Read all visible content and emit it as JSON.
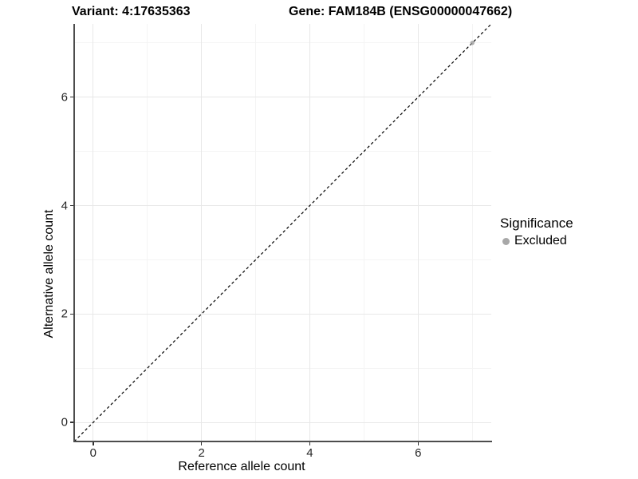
{
  "header": {
    "variant_title": "Variant: 4:17635363",
    "gene_title": "Gene: FAM184B (ENSG00000047662)"
  },
  "chart_data": {
    "type": "scatter",
    "titles": [
      "Variant: 4:17635363",
      "Gene: FAM184B (ENSG00000047662)"
    ],
    "xlabel": "Reference allele count",
    "ylabel": "Alternative allele count",
    "xlim": [
      -0.35,
      7.35
    ],
    "ylim": [
      -0.35,
      7.35
    ],
    "x_major_ticks": [
      0,
      2,
      4,
      6
    ],
    "y_major_ticks": [
      0,
      2,
      4,
      6
    ],
    "x_minor_breaks": [
      1,
      3,
      5,
      7
    ],
    "y_minor_breaks": [
      1,
      3,
      5,
      7
    ],
    "grid": "major+minor",
    "identity_line": {
      "equation": "y = x",
      "style": "dashed",
      "color": "#000000"
    },
    "series": [
      {
        "name": "Excluded",
        "color": "#9c9c9c",
        "points": [
          [
            7,
            7
          ]
        ]
      }
    ],
    "legend": {
      "title": "Significance",
      "position": "right",
      "entries": [
        {
          "label": "Excluded",
          "color": "#a8a8a8"
        }
      ]
    }
  }
}
